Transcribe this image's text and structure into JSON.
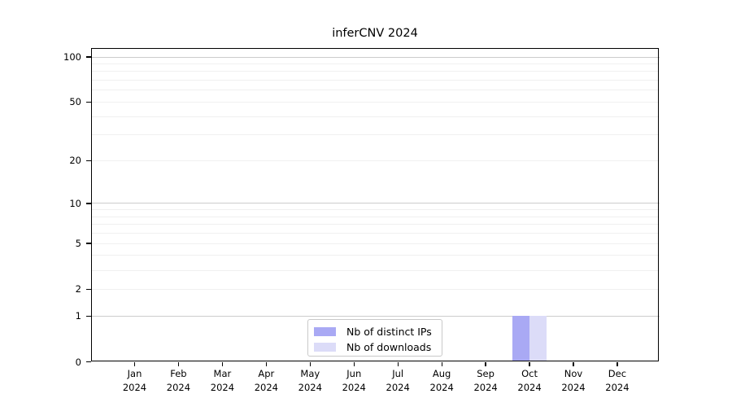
{
  "chart_data": {
    "type": "bar",
    "title": "inferCNV 2024",
    "months": [
      "Jan",
      "Feb",
      "Mar",
      "Apr",
      "May",
      "Jun",
      "Jul",
      "Aug",
      "Sep",
      "Oct",
      "Nov",
      "Dec"
    ],
    "year": "2024",
    "series": [
      {
        "name": "Nb of distinct IPs",
        "color": "#a9a9f4",
        "values": [
          0,
          0,
          0,
          0,
          0,
          0,
          0,
          0,
          0,
          1,
          0,
          0
        ]
      },
      {
        "name": "Nb of downloads",
        "color": "#dcdcf8",
        "values": [
          0,
          0,
          0,
          0,
          0,
          0,
          0,
          0,
          0,
          1,
          0,
          0
        ]
      }
    ],
    "xlabel": "",
    "ylabel": "",
    "y_scale": "log1p",
    "ylim": [
      0,
      115
    ],
    "y_tick_values": [
      0,
      1,
      2,
      5,
      10,
      20,
      50,
      100
    ],
    "grid": {
      "major_values": [
        1,
        10,
        100
      ],
      "minor_values": [
        2,
        3,
        4,
        5,
        6,
        7,
        8,
        9,
        20,
        30,
        40,
        50,
        60,
        70,
        80,
        90
      ],
      "major_color": "#cccccc",
      "minor_color": "#f0f0f0"
    },
    "legend_position": "lower center"
  },
  "colors": {
    "background": "#ffffff",
    "axis": "#000000",
    "text": "#000000"
  }
}
